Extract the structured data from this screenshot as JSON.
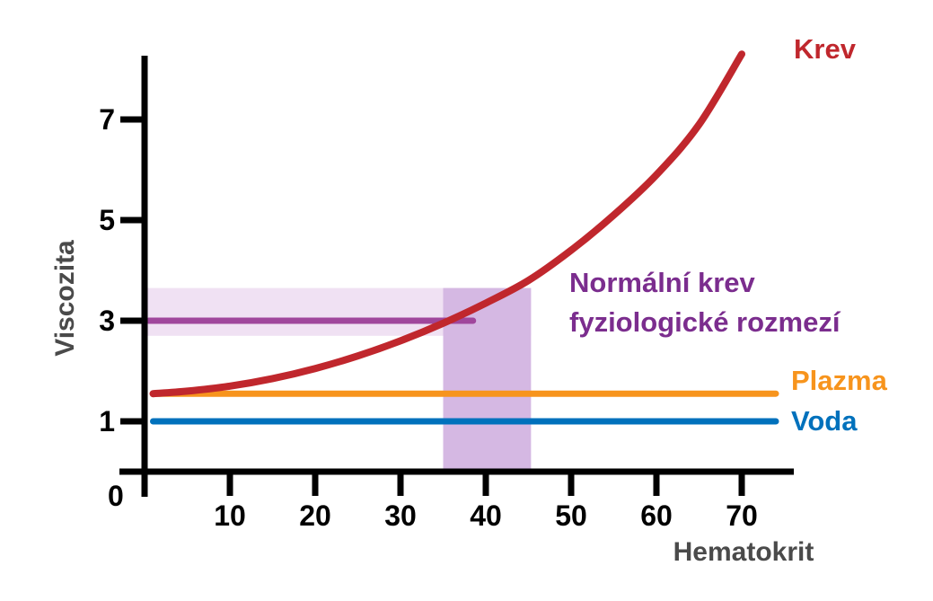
{
  "chart_data": {
    "type": "line",
    "title": "",
    "xlabel": "Hematokrit",
    "ylabel": "Viscozita",
    "origin_label": "0",
    "xlim": [
      0,
      76
    ],
    "ylim": [
      0,
      8.6
    ],
    "x_ticks": [
      10,
      20,
      30,
      40,
      50,
      60,
      70
    ],
    "y_ticks": [
      1,
      3,
      5,
      7
    ],
    "grid": false,
    "series": [
      {
        "name": "Krev",
        "color": "#c0272d",
        "x": [
          1,
          5,
          10,
          15,
          20,
          25,
          30,
          35,
          40,
          45,
          50,
          55,
          60,
          65,
          70
        ],
        "y": [
          1.55,
          1.6,
          1.7,
          1.85,
          2.05,
          2.3,
          2.6,
          2.95,
          3.35,
          3.8,
          4.4,
          5.1,
          5.9,
          6.9,
          8.3
        ]
      },
      {
        "name": "Plazma",
        "color": "#f7941d",
        "x": [
          1,
          74
        ],
        "y": [
          1.55,
          1.55
        ]
      },
      {
        "name": "Voda",
        "color": "#0071bc",
        "x": [
          1,
          74
        ],
        "y": [
          1.0,
          1.0
        ]
      }
    ],
    "annotation": {
      "label_lines": [
        "Normální krev",
        "fyziologické rozmezí"
      ],
      "color": "#7b2d8e",
      "x_range": [
        35,
        45.3
      ],
      "y_range": [
        2.7,
        3.65
      ],
      "line_y": 3.0,
      "line_x_end": 38.5,
      "line_color": "#a0479c",
      "band_color": "#f0e1f3",
      "box_color": "#d5b8e3"
    }
  }
}
